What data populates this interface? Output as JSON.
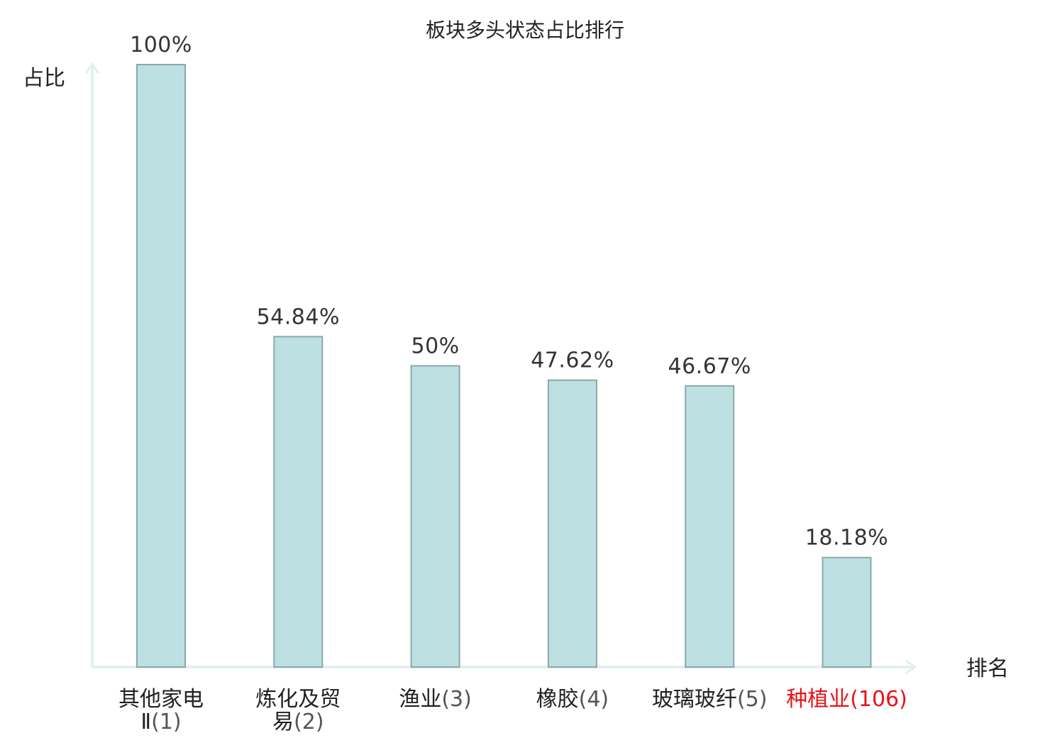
{
  "chart_data": {
    "type": "bar",
    "title": "板块多头状态占比排行",
    "ylabel": "占比",
    "xlabel": "排名",
    "ylim": [
      0,
      100
    ],
    "grid": false,
    "categories": [
      {
        "name": "其他家电Ⅱ",
        "rank": "(1)",
        "lines": [
          "其他家电",
          "Ⅱ(1)"
        ],
        "highlight": false
      },
      {
        "name": "炼化及贸易",
        "rank": "(2)",
        "lines": [
          "炼化及贸",
          "易(2)"
        ],
        "highlight": false
      },
      {
        "name": "渔业",
        "rank": "(3)",
        "lines": [
          "渔业(3)"
        ],
        "highlight": false
      },
      {
        "name": "橡胶",
        "rank": "(4)",
        "lines": [
          "橡胶(4)"
        ],
        "highlight": false
      },
      {
        "name": "玻璃玻纤",
        "rank": "(5)",
        "lines": [
          "玻璃玻纤(5)"
        ],
        "highlight": false
      },
      {
        "name": "种植业",
        "rank": "(106)",
        "lines": [
          "种植业(106)"
        ],
        "highlight": true
      }
    ],
    "values": [
      100,
      54.84,
      50,
      47.62,
      46.67,
      18.18
    ],
    "value_labels": [
      "100%",
      "54.84%",
      "50%",
      "47.62%",
      "46.67%",
      "18.18%"
    ],
    "colors": {
      "bar_fill": "#bde0e2",
      "bar_stroke": "#8aa8aa",
      "axis": "#dff1ef",
      "highlight": "#e8141a"
    }
  }
}
